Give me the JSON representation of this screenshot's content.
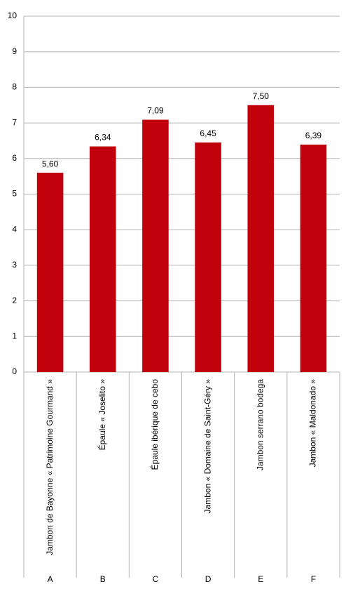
{
  "chart_data": {
    "type": "bar",
    "categories": [
      "Jambon de Bayonne « Patrimoine Gourmand »",
      "Épaule « Joselito »",
      "Épaule ibérique de cebo",
      "Jambon « Domaine de Saint-Géry »",
      "Jambon serrano bodega",
      "Jambon « Maldonado »"
    ],
    "outer_categories": [
      "A",
      "B",
      "C",
      "D",
      "E",
      "F"
    ],
    "values": [
      5.6,
      6.34,
      7.09,
      6.45,
      7.5,
      6.39
    ],
    "value_labels": [
      "5,60",
      "6,34",
      "7,09",
      "6,45",
      "7,50",
      "6,39"
    ],
    "color": "#c0000b",
    "ylim": [
      0,
      10
    ],
    "yticks": [
      0,
      1,
      2,
      3,
      4,
      5,
      6,
      7,
      8,
      9,
      10
    ],
    "grid": true
  }
}
